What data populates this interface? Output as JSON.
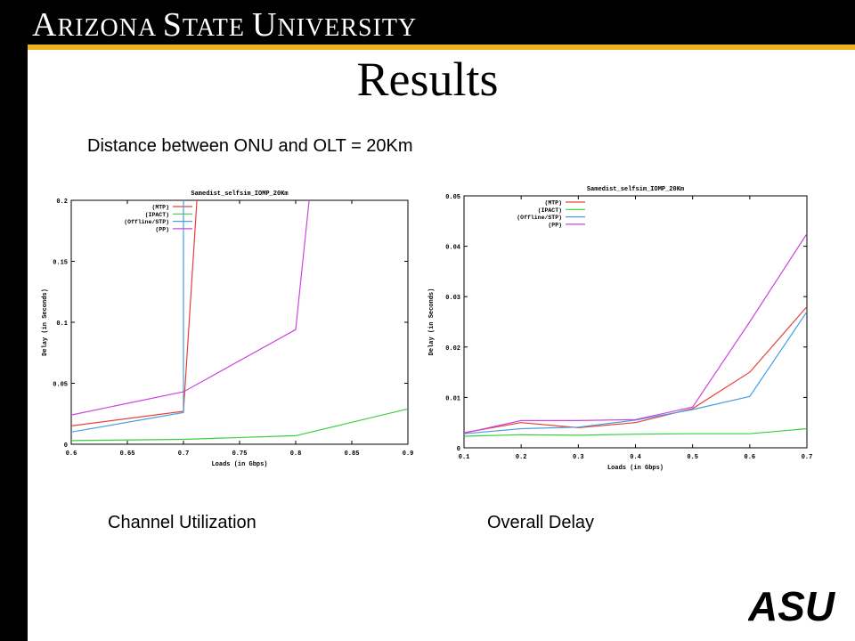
{
  "header": {
    "university_name_parts": [
      "A",
      "RIZONA ",
      "S",
      "TATE ",
      "U",
      "NIVERSITY"
    ],
    "colors": {
      "bar": "#000000",
      "accent": "#e8b31f"
    }
  },
  "slide": {
    "title": "Results",
    "subtitle": "Distance between ONU and OLT = 20Km",
    "caption_left": "Channel Utilization",
    "caption_right": "Overall Delay"
  },
  "logo": {
    "text": "ASU"
  },
  "chart_data": [
    {
      "type": "line",
      "title": "Samedist_selfsim_IOMP_20Km",
      "xlabel": "Loads (in Gbps)",
      "ylabel": "Delay (in Seconds)",
      "xlim": [
        0.6,
        0.9
      ],
      "ylim": [
        0,
        0.2
      ],
      "xticks": [
        "0.6",
        "0.65",
        "0.7",
        "0.75",
        "0.8",
        "0.85",
        "0.9"
      ],
      "yticks": [
        "0",
        "0.05",
        "0.1",
        "0.15",
        "0.2"
      ],
      "grid": false,
      "legend_position": "top-left",
      "series": [
        {
          "name": "(MTP)",
          "color": "#e8403a",
          "x": [
            0.6,
            0.7,
            0.712
          ],
          "y": [
            0.015,
            0.027,
            0.2
          ]
        },
        {
          "name": "(IPACT)",
          "color": "#3ccf3c",
          "x": [
            0.6,
            0.7,
            0.8,
            0.9
          ],
          "y": [
            0.003,
            0.004,
            0.007,
            0.029
          ]
        },
        {
          "name": "(Offline/STP)",
          "color": "#4a9fe0",
          "x": [
            0.6,
            0.7,
            0.7
          ],
          "y": [
            0.01,
            0.026,
            0.2
          ]
        },
        {
          "name": "(PP)",
          "color": "#cc44dd",
          "x": [
            0.6,
            0.7,
            0.8,
            0.812
          ],
          "y": [
            0.024,
            0.043,
            0.094,
            0.2
          ]
        }
      ]
    },
    {
      "type": "line",
      "title": "Samedist_selfsim_IOMP_20Km",
      "xlabel": "Loads (in Gbps)",
      "ylabel": "Delay (in Seconds)",
      "xlim": [
        0.1,
        0.7
      ],
      "ylim": [
        0,
        0.05
      ],
      "xticks": [
        "0.1",
        "0.2",
        "0.3",
        "0.4",
        "0.5",
        "0.6",
        "0.7"
      ],
      "yticks": [
        "0",
        "0.01",
        "0.02",
        "0.03",
        "0.04",
        "0.05"
      ],
      "grid": false,
      "legend_position": "top-left",
      "series": [
        {
          "name": "(MTP)",
          "color": "#e8403a",
          "x": [
            0.1,
            0.2,
            0.3,
            0.4,
            0.5,
            0.6,
            0.7
          ],
          "y": [
            0.003,
            0.005,
            0.004,
            0.005,
            0.0078,
            0.015,
            0.028
          ]
        },
        {
          "name": "(IPACT)",
          "color": "#3ccf3c",
          "x": [
            0.1,
            0.2,
            0.3,
            0.4,
            0.5,
            0.6,
            0.7
          ],
          "y": [
            0.0023,
            0.0026,
            0.0025,
            0.0027,
            0.0028,
            0.0028,
            0.0038
          ]
        },
        {
          "name": "(Offline/STP)",
          "color": "#4a9fe0",
          "x": [
            0.1,
            0.2,
            0.3,
            0.4,
            0.5,
            0.6,
            0.7
          ],
          "y": [
            0.0028,
            0.0038,
            0.0041,
            0.0055,
            0.0076,
            0.0102,
            0.027
          ]
        },
        {
          "name": "(PP)",
          "color": "#cc44dd",
          "x": [
            0.1,
            0.2,
            0.3,
            0.4,
            0.5,
            0.6,
            0.7
          ],
          "y": [
            0.0029,
            0.0054,
            0.0054,
            0.0056,
            0.0081,
            0.025,
            0.0425
          ]
        }
      ]
    }
  ]
}
